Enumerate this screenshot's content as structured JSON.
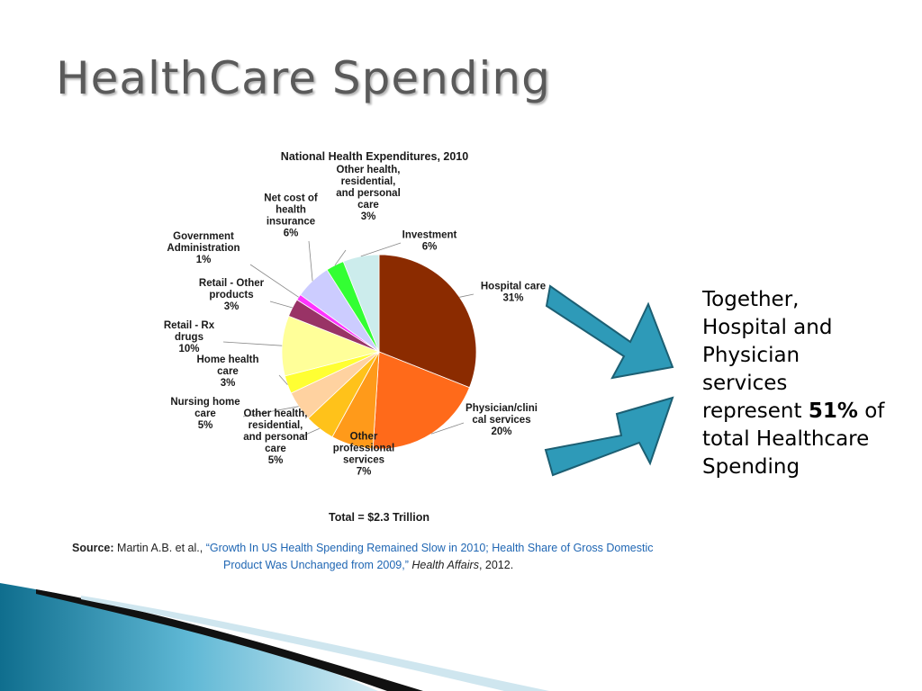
{
  "slide": {
    "title": "HealthCare Spending"
  },
  "side_text": {
    "line1": "Together,",
    "line2": "Hospital and",
    "line3": "Physician",
    "line4": "services",
    "line5_pre": "represent",
    "line5_bold": "51%",
    "line5_post": "of",
    "line6": "total Healthcare",
    "line7": "Spending"
  },
  "source": {
    "label": "Source:",
    "authors": "Martin A.B. et al.,",
    "link_line1": "“Growth In US Health Spending Remained Slow in 2010; Health Share of Gross Domestic",
    "link_line2": "Product Was Unchanged from 2009,”",
    "journal": "Health Affairs",
    "year": ", 2012."
  },
  "chart_data": {
    "type": "pie",
    "title": "National Health Expenditures, 2010",
    "total_label": "Total = $2.3 Trillion",
    "slices": [
      {
        "label": "Hospital care",
        "label_lines": [
          "Hospital care",
          "31%"
        ],
        "value": 31,
        "color": "#8b2b00"
      },
      {
        "label": "Physician/clinical services",
        "label_lines": [
          "Physician/clini",
          "cal services",
          "20%"
        ],
        "value": 20,
        "color": "#ff6a1a"
      },
      {
        "label": "Other professional services",
        "label_lines": [
          "Other",
          "professional",
          "services",
          "7%"
        ],
        "value": 7,
        "color": "#ff9a1a"
      },
      {
        "label": "Other health, residential, and personal care",
        "label_lines": [
          "Other health,",
          "residential,",
          "and personal",
          "care",
          "5%"
        ],
        "value": 5,
        "color": "#ffc21a"
      },
      {
        "label": "Nursing home care",
        "label_lines": [
          "Nursing home",
          "care",
          "5%"
        ],
        "value": 5,
        "color": "#ffd2a0"
      },
      {
        "label": "Home health care",
        "label_lines": [
          "Home health",
          "care",
          "3%"
        ],
        "value": 3,
        "color": "#ffff33"
      },
      {
        "label": "Retail - Rx drugs",
        "label_lines": [
          "Retail - Rx",
          "drugs",
          "10%"
        ],
        "value": 10,
        "color": "#ffff99"
      },
      {
        "label": "Retail - Other products",
        "label_lines": [
          "Retail - Other",
          "products",
          "3%"
        ],
        "value": 3,
        "color": "#993366"
      },
      {
        "label": "Government Administration",
        "label_lines": [
          "Government",
          "Administration",
          "1%"
        ],
        "value": 1,
        "color": "#ff33ff"
      },
      {
        "label": "Net cost of health insurance",
        "label_lines": [
          "Net cost of",
          "health",
          "insurance",
          "6%"
        ],
        "value": 6,
        "color": "#ccccff"
      },
      {
        "label": "Other health, residential, and personal care",
        "label_lines": [
          "Other health,",
          "residential,",
          "and personal",
          "care",
          "3%"
        ],
        "value": 3,
        "color": "#33ff33"
      },
      {
        "label": "Investment",
        "label_lines": [
          "Investment",
          "6%"
        ],
        "value": 6,
        "color": "#ccecec"
      }
    ]
  },
  "theme": {
    "arrow_fill": "#2e9ab8",
    "arrow_stroke": "#1c5f73",
    "title_color": "#5a5a5a"
  }
}
